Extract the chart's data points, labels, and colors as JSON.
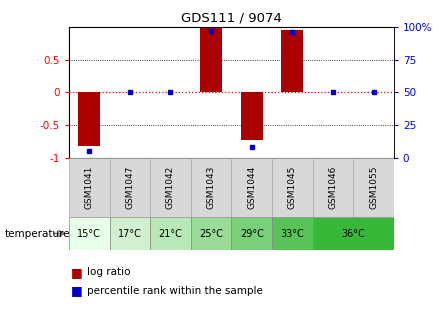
{
  "title": "GDS111 / 9074",
  "samples": [
    "GSM1041",
    "GSM1047",
    "GSM1042",
    "GSM1043",
    "GSM1044",
    "GSM1045",
    "GSM1046",
    "GSM1055"
  ],
  "log_ratios": [
    -0.82,
    0.0,
    0.0,
    1.0,
    -0.73,
    0.95,
    0.0,
    0.0
  ],
  "percentile_ranks": [
    5,
    50,
    50,
    97,
    8,
    96,
    50,
    50
  ],
  "ylim_left": [
    -1,
    1
  ],
  "yticks_left": [
    -1,
    -0.5,
    0,
    0.5
  ],
  "yticklabels_left": [
    "-1",
    "-0.5",
    "0",
    "0.5"
  ],
  "ylim_right": [
    0,
    100
  ],
  "yticks_right": [
    0,
    25,
    50,
    75,
    100
  ],
  "yticklabels_right": [
    "0",
    "25",
    "50",
    "75",
    "100%"
  ],
  "bar_color": "#aa0000",
  "dot_color": "#0000cc",
  "temp_row": [
    {
      "label": "15°C",
      "span": 1,
      "color": "#e8ffe8"
    },
    {
      "label": "17°C",
      "span": 1,
      "color": "#d0f0d0"
    },
    {
      "label": "21°C",
      "span": 1,
      "color": "#b8e8b8"
    },
    {
      "label": "25°C",
      "span": 1,
      "color": "#98dc98"
    },
    {
      "label": "29°C",
      "span": 1,
      "color": "#78d078"
    },
    {
      "label": "33°C",
      "span": 1,
      "color": "#58c458"
    },
    {
      "label": "36°C",
      "span": 2,
      "color": "#38b838"
    }
  ],
  "gsm_bg": "#d8d8d8",
  "legend_log_ratio": "log ratio",
  "legend_percentile": "percentile rank within the sample",
  "temp_label": "temperature"
}
